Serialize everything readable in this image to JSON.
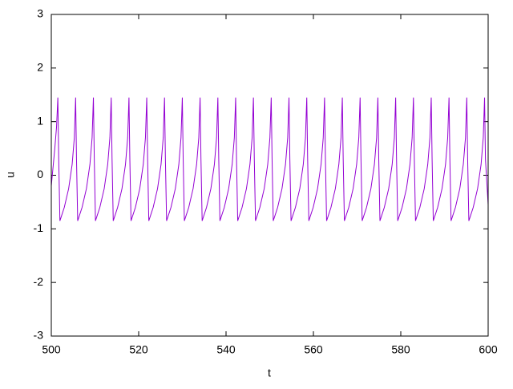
{
  "chart_data": {
    "type": "line",
    "xlabel": "t",
    "ylabel": "u",
    "xlim": [
      500,
      600
    ],
    "xticks": [
      500,
      520,
      540,
      560,
      580,
      600
    ],
    "ylim": [
      -3,
      3
    ],
    "yticks": [
      -3,
      -2,
      -1,
      0,
      1,
      2,
      3
    ],
    "grid": false,
    "color": "#9400d3",
    "x": [
      500,
      500.8,
      501.2,
      501.5,
      501.7,
      501.97,
      502.97,
      503.97,
      504.77,
      505.27,
      505.57,
      505.77,
      506.04,
      507.04,
      508.04,
      508.84,
      509.34,
      509.64,
      509.84,
      510.11,
      511.11,
      512.11,
      512.91,
      513.41,
      513.71,
      513.91,
      514.18,
      515.18,
      516.18,
      516.98,
      517.48,
      517.78,
      517.98,
      518.25,
      519.25,
      520.25,
      521.05,
      521.55,
      521.85,
      522.05,
      522.32,
      523.32,
      524.32,
      525.12,
      525.62,
      525.92,
      526.12,
      526.39,
      527.39,
      528.39,
      529.19,
      529.69,
      529.99,
      530.19,
      530.46,
      531.46,
      532.46,
      533.26,
      533.76,
      534.06,
      534.26,
      534.53,
      535.53,
      536.53,
      537.33,
      537.83,
      538.13,
      538.33,
      538.6,
      539.6,
      540.6,
      541.4,
      541.9,
      542.2,
      542.4,
      542.67,
      543.67,
      544.67,
      545.47,
      545.97,
      546.27,
      546.47,
      546.74,
      547.74,
      548.74,
      549.54,
      550.04,
      550.34,
      550.54,
      550.81,
      551.81,
      552.81,
      553.61,
      554.11,
      554.41,
      554.61,
      554.88,
      555.88,
      556.88,
      557.68,
      558.18,
      558.48,
      558.68,
      558.95,
      559.95,
      560.95,
      561.75,
      562.25,
      562.55,
      562.75,
      563.02,
      564.02,
      565.02,
      565.82,
      566.32,
      566.62,
      566.82,
      567.09,
      568.09,
      569.09,
      569.89,
      570.39,
      570.69,
      570.89,
      571.16,
      572.16,
      573.16,
      573.96,
      574.46,
      574.76,
      574.96,
      575.23,
      576.23,
      577.23,
      578.03,
      578.53,
      578.83,
      579.03,
      579.3,
      580.3,
      581.3,
      582.1,
      582.6,
      582.9,
      583.1,
      583.37,
      584.37,
      585.37,
      586.17,
      586.67,
      586.97,
      587.17,
      587.44,
      588.44,
      589.44,
      590.24,
      590.74,
      591.04,
      591.24,
      591.51,
      592.51,
      593.51,
      594.31,
      594.81,
      595.11,
      595.31,
      595.58,
      596.58,
      597.58,
      598.38,
      598.88,
      599.18,
      599.38,
      600
    ],
    "values": [
      -0.2,
      0.5,
      0.9,
      1.45,
      0.3,
      -0.85,
      -0.6,
      -0.25,
      0.2,
      0.7,
      1.45,
      0.3,
      -0.85,
      -0.6,
      -0.25,
      0.2,
      0.7,
      1.45,
      0.3,
      -0.85,
      -0.6,
      -0.25,
      0.2,
      0.7,
      1.45,
      0.3,
      -0.85,
      -0.6,
      -0.25,
      0.2,
      0.7,
      1.45,
      0.3,
      -0.85,
      -0.6,
      -0.25,
      0.2,
      0.7,
      1.45,
      0.3,
      -0.85,
      -0.6,
      -0.25,
      0.2,
      0.7,
      1.45,
      0.3,
      -0.85,
      -0.6,
      -0.25,
      0.2,
      0.7,
      1.45,
      0.3,
      -0.85,
      -0.6,
      -0.25,
      0.2,
      0.7,
      1.45,
      0.3,
      -0.85,
      -0.6,
      -0.25,
      0.2,
      0.7,
      1.45,
      0.3,
      -0.85,
      -0.6,
      -0.25,
      0.2,
      0.7,
      1.45,
      0.3,
      -0.85,
      -0.6,
      -0.25,
      0.2,
      0.7,
      1.45,
      0.3,
      -0.85,
      -0.6,
      -0.25,
      0.2,
      0.7,
      1.45,
      0.3,
      -0.85,
      -0.6,
      -0.25,
      0.2,
      0.7,
      1.45,
      0.3,
      -0.85,
      -0.6,
      -0.25,
      0.2,
      0.7,
      1.45,
      0.3,
      -0.85,
      -0.6,
      -0.25,
      0.2,
      0.7,
      1.45,
      0.3,
      -0.85,
      -0.6,
      -0.25,
      0.2,
      0.7,
      1.45,
      0.3,
      -0.85,
      -0.6,
      -0.25,
      0.2,
      0.7,
      1.45,
      0.3,
      -0.85,
      -0.6,
      -0.25,
      0.2,
      0.7,
      1.45,
      0.3,
      -0.85,
      -0.6,
      -0.25,
      0.2,
      0.7,
      1.45,
      0.3,
      -0.85,
      -0.6,
      -0.25,
      0.2,
      0.7,
      1.45,
      0.3,
      -0.85,
      -0.6,
      -0.25,
      0.2,
      0.7,
      1.45,
      0.3,
      -0.85,
      -0.6,
      -0.25,
      0.2,
      0.7,
      1.45,
      0.3,
      -0.85,
      -0.6,
      -0.25,
      0.2,
      0.7,
      1.45,
      0.3,
      -0.85,
      -0.6,
      -0.25,
      0.2,
      0.7,
      1.45,
      0.3,
      -0.55
    ]
  }
}
